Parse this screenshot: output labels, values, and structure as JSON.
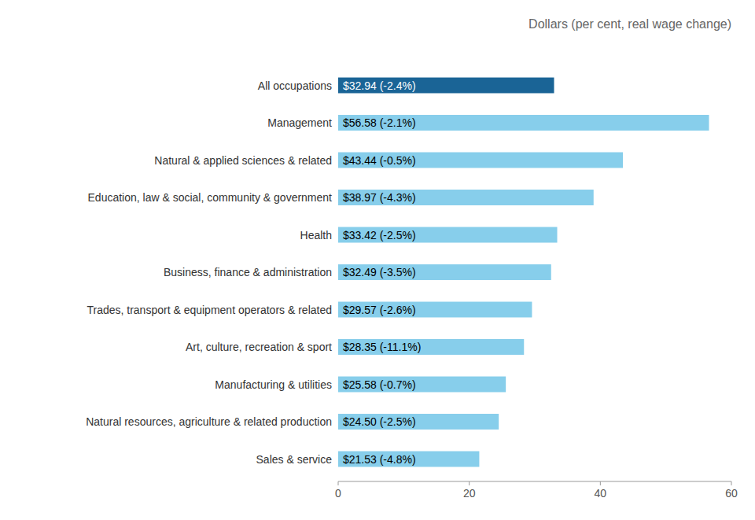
{
  "chart_data": {
    "type": "bar",
    "orientation": "horizontal",
    "title": "Dollars (per cent, real wage change)",
    "categories": [
      "Sales & service",
      "Natural resources, agriculture & related production",
      "Manufacturing & utilities",
      "Art, culture, recreation & sport",
      "Trades, transport & equipment operators & related",
      "Business, finance & administration",
      "Health",
      "Education, law & social, community & government",
      "Natural & applied sciences & related",
      "Management",
      "All occupations"
    ],
    "values": [
      21.53,
      24.5,
      25.58,
      28.35,
      29.57,
      32.49,
      33.42,
      38.97,
      43.44,
      56.58,
      32.94
    ],
    "value_labels": [
      "$21.53 (-4.8%)",
      "$24.50 (-2.5%)",
      "$25.58 (-0.7%)",
      "$28.35 (-11.1%)",
      "$29.57 (-2.6%)",
      "$32.49 (-3.5%)",
      "$33.42 (-2.5%)",
      "$38.97 (-4.3%)",
      "$43.44 (-0.5%)",
      "$56.58 (-2.1%)",
      "$32.94 (-2.4%)"
    ],
    "data_labels": true,
    "colors": [
      "#87CEEB",
      "#87CEEB",
      "#87CEEB",
      "#87CEEB",
      "#87CEEB",
      "#87CEEB",
      "#87CEEB",
      "#87CEEB",
      "#87CEEB",
      "#87CEEB",
      "#1A6496"
    ],
    "xlim": [
      0,
      60
    ],
    "xticks": [
      0,
      20,
      40,
      60
    ],
    "grid": false
  }
}
